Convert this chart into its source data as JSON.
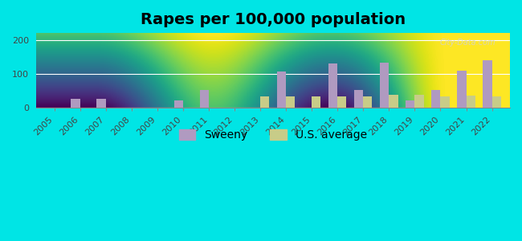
{
  "title": "Rapes per 100,000 population",
  "years": [
    2005,
    2006,
    2007,
    2008,
    2009,
    2010,
    2011,
    2012,
    2013,
    2014,
    2015,
    2016,
    2017,
    2018,
    2019,
    2020,
    2021,
    2022
  ],
  "sweeny": [
    0,
    27,
    27,
    0,
    0,
    22,
    53,
    0,
    0,
    107,
    0,
    130,
    53,
    133,
    22,
    53,
    110,
    140
  ],
  "us_avg": [
    0,
    0,
    0,
    0,
    0,
    0,
    0,
    0,
    32,
    33,
    33,
    32,
    32,
    38,
    38,
    33,
    35,
    33
  ],
  "sweeny_color": "#b09ac0",
  "us_avg_color": "#c8cc88",
  "background_top": "#e8ffe8",
  "background_bottom": "#f5fff5",
  "plot_bg_top": "#d0f0d0",
  "plot_bg_bottom": "#f0fff0",
  "outer_bg": "#00e5e5",
  "ylim": [
    0,
    220
  ],
  "yticks": [
    0,
    100,
    200
  ],
  "bar_width": 0.35,
  "title_fontsize": 14,
  "legend_fontsize": 10,
  "tick_fontsize": 8
}
